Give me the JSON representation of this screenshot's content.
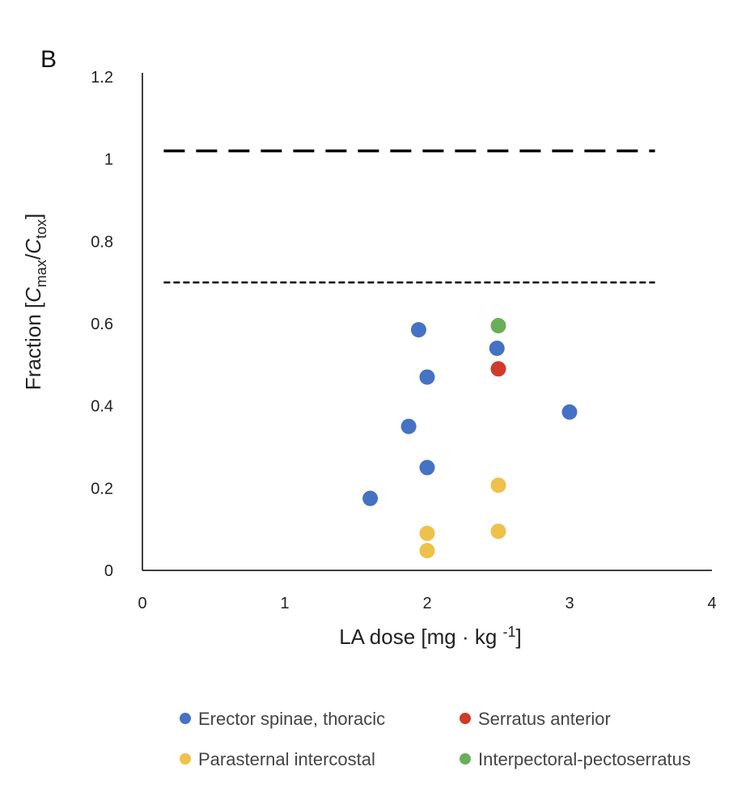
{
  "chart_data": {
    "type": "scatter",
    "panel_label": "B",
    "xlabel": "LA dose [mg · kg -1]",
    "ylabel": "Fraction [Cmax/Ctox]",
    "xlim": [
      0,
      4
    ],
    "ylim": [
      0,
      1.2
    ],
    "xticks": [
      "0",
      "1",
      "2",
      "3",
      "4"
    ],
    "yticks": [
      "0",
      "0.2",
      "0.4",
      "0.6",
      "0.8",
      "1",
      "1.2"
    ],
    "grid": false,
    "legend_position": "bottom",
    "reference_lines": [
      {
        "style": "long-dash",
        "y": 1.02,
        "x_range": [
          0.15,
          3.6
        ]
      },
      {
        "style": "short-dash",
        "y": 0.7,
        "x_range": [
          0.15,
          3.6
        ]
      }
    ],
    "series": [
      {
        "name": "Erector spinae, thoracic",
        "color": "#4472C4",
        "points": [
          {
            "x": 1.6,
            "y": 0.175
          },
          {
            "x": 1.87,
            "y": 0.35
          },
          {
            "x": 1.94,
            "y": 0.585
          },
          {
            "x": 2.0,
            "y": 0.47
          },
          {
            "x": 2.0,
            "y": 0.25
          },
          {
            "x": 2.49,
            "y": 0.54
          },
          {
            "x": 3.0,
            "y": 0.385
          }
        ]
      },
      {
        "name": "Serratus anterior",
        "color": "#D03A2B",
        "points": [
          {
            "x": 2.5,
            "y": 0.49
          }
        ]
      },
      {
        "name": "Parasternal intercostal",
        "color": "#EEC14B",
        "points": [
          {
            "x": 2.0,
            "y": 0.09
          },
          {
            "x": 2.0,
            "y": 0.048
          },
          {
            "x": 2.5,
            "y": 0.207
          },
          {
            "x": 2.5,
            "y": 0.095
          }
        ]
      },
      {
        "name": "Interpectoral-pectoserratus",
        "color": "#6AAE5A",
        "points": [
          {
            "x": 2.5,
            "y": 0.595
          }
        ]
      }
    ]
  }
}
